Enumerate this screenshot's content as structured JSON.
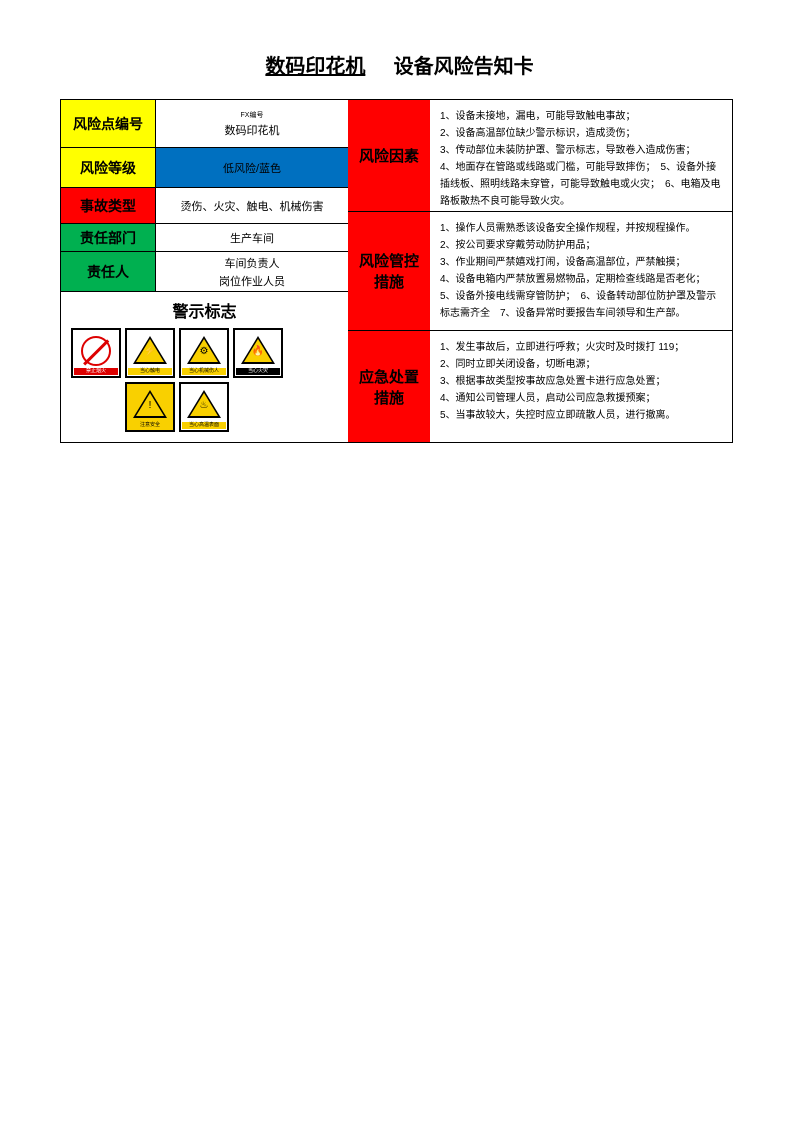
{
  "title": {
    "equipment": "数码印花机",
    "suffix": "设备风险告知卡"
  },
  "colors": {
    "yellow": "#ffff00",
    "blue": "#0070c0",
    "red": "#ff0000",
    "green": "#00b050",
    "white": "#ffffff",
    "black": "#000000",
    "warn_yellow": "#f9d000",
    "prohibit_red": "#d00000"
  },
  "left": {
    "risk_point_id": {
      "label": "风险点编号",
      "equipment_name": "数码印花机",
      "code": "FX编号"
    },
    "risk_level": {
      "label": "风险等级",
      "value": "低风险/蓝色"
    },
    "accident_type": {
      "label": "事故类型",
      "value": "烫伤、火灾、触电、机械伤害"
    },
    "department": {
      "label": "责任部门",
      "value": "生产车间"
    },
    "person": {
      "label": "责任人",
      "value1": "车间负责人",
      "value2": "岗位作业人员"
    }
  },
  "right": {
    "risk_factors": {
      "label": "风险因素",
      "text": "1、设备未接地，漏电，可能导致触电事故；\n2、设备高温部位缺少警示标识，造成烫伤；\n3、传动部位未装防护罩、警示标志，导致卷入造成伤害；\n4、地面存在管路或线路或门槛，可能导致摔伤；　5、设备外接插线板、照明线路未穿管，可能导致触电或火灾；　6、电箱及电路板散热不良可能导致火灾。"
    },
    "control_measures": {
      "label1": "风险管控",
      "label2": "措施",
      "text": "1、操作人员需熟悉该设备安全操作规程，并按规程操作。\n2、按公司要求穿戴劳动防护用品；\n3、作业期间严禁嬉戏打闹，设备高温部位，严禁触摸；\n4、设备电箱内严禁放置易燃物品，定期检查线路是否老化；\n5、设备外接电线需穿管防护；　6、设备转动部位防护罩及警示标志需齐全　7、设备异常时要报告车间领导和生产部。"
    },
    "emergency": {
      "label1": "应急处置",
      "label2": "措施",
      "text": "1、发生事故后，立即进行呼救；火灾时及时拨打 119；\n2、同时立即关闭设备，切断电源；\n3、根据事故类型按事故应急处置卡进行应急处置；\n4、通知公司管理人员，启动公司应急救援预案；\n5、当事故较大，失控时应立即疏散人员，进行撤离。"
    }
  },
  "warning": {
    "title": "警示标志",
    "signs_row1": [
      {
        "type": "prohibit",
        "caption": "禁止烟火",
        "caption_style": "red"
      },
      {
        "type": "triangle",
        "glyph": "⚡",
        "caption": "当心触电",
        "caption_style": "yellow"
      },
      {
        "type": "triangle",
        "glyph": "⚙",
        "caption": "当心机械伤人",
        "caption_style": "yellow"
      },
      {
        "type": "triangle",
        "glyph": "🔥",
        "caption": "当心火灾",
        "caption_style": "black"
      }
    ],
    "signs_row2": [
      {
        "type": "triangle",
        "glyph": "!",
        "caption": "注意安全",
        "caption_style": "yellow",
        "bg": "yellow"
      },
      {
        "type": "triangle",
        "glyph": "♨",
        "caption": "当心高温表面",
        "caption_style": "yellow"
      }
    ]
  }
}
